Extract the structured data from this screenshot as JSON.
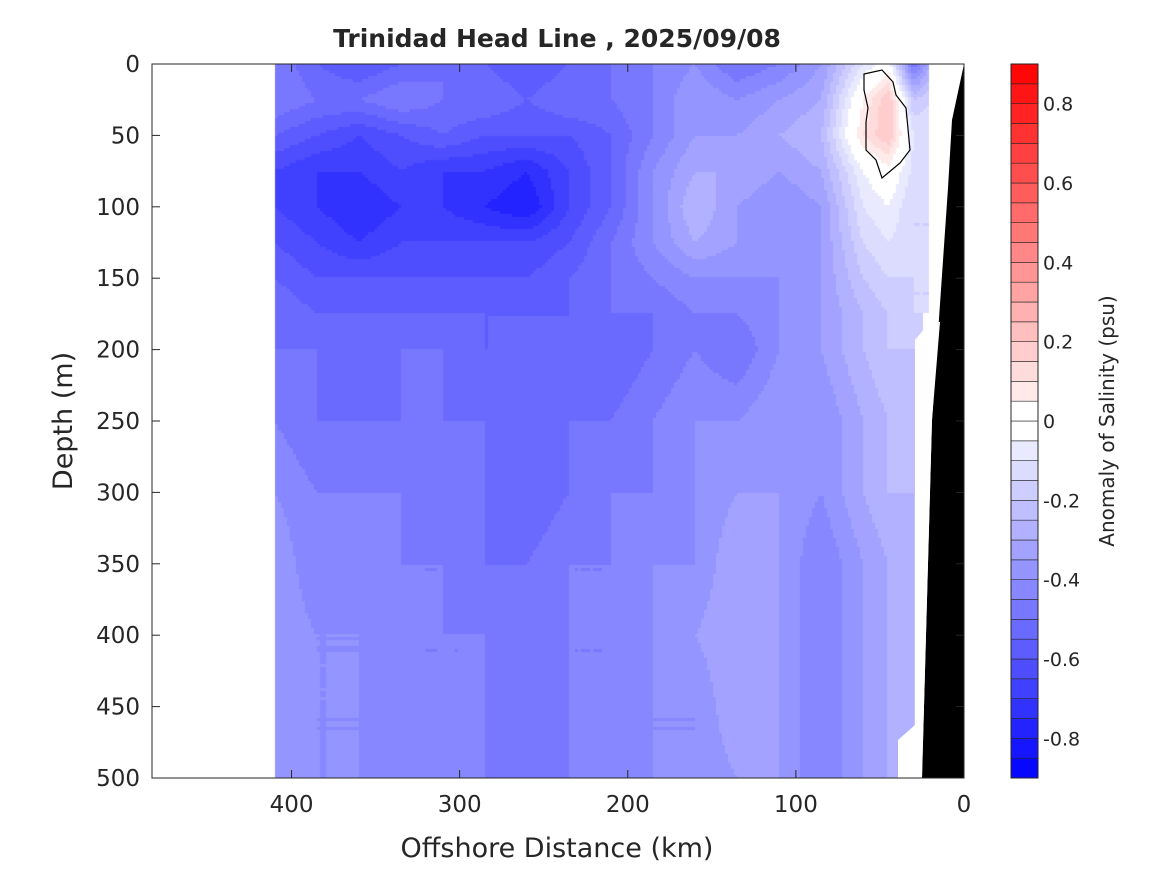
{
  "chart_data": {
    "type": "heatmap",
    "title": "Trinidad Head Line , 2025/09/08",
    "xlabel": "Offshore Distance (km)",
    "ylabel": "Depth (m)",
    "xlim": [
      483,
      0
    ],
    "ylim": [
      500,
      0
    ],
    "xticks": [
      "400",
      "300",
      "200",
      "100",
      "0"
    ],
    "xtick_values": [
      400,
      300,
      200,
      100,
      0
    ],
    "yticks": [
      "0",
      "50",
      "100",
      "150",
      "200",
      "250",
      "300",
      "350",
      "400",
      "450",
      "500"
    ],
    "ytick_values": [
      0,
      50,
      100,
      150,
      200,
      250,
      300,
      350,
      400,
      450,
      500
    ],
    "colorbar": {
      "label": "Anomaly of Salinity (psu)",
      "range": [
        -0.9,
        0.9
      ],
      "step": 0.05,
      "ticks": [
        "0.8",
        "0.6",
        "0.4",
        "0.2",
        "0",
        "-0.2",
        "-0.4",
        "-0.6",
        "-0.8"
      ],
      "tick_values": [
        0.8,
        0.6,
        0.4,
        0.2,
        0,
        -0.2,
        -0.4,
        -0.6,
        -0.8
      ],
      "neg_color": "#0000ff",
      "pos_color": "#ff0000",
      "mid_color": "#ffffff"
    },
    "distance_km": [
      410,
      385,
      360,
      335,
      310,
      285,
      260,
      235,
      210,
      185,
      160,
      135,
      110,
      85,
      60,
      45,
      30,
      20
    ],
    "depth_m": [
      0,
      25,
      50,
      75,
      100,
      125,
      150,
      175,
      200,
      250,
      300,
      350,
      400,
      450,
      500
    ],
    "anomaly": [
      [
        -0.45,
        -0.55,
        -0.6,
        -0.55,
        -0.5,
        -0.55,
        -0.6,
        -0.55,
        -0.5,
        -0.45,
        -0.4,
        -0.5,
        -0.45,
        -0.35,
        -0.1,
        0.0,
        -0.5,
        -0.3
      ],
      [
        -0.45,
        -0.5,
        -0.5,
        -0.45,
        -0.5,
        -0.5,
        -0.55,
        -0.5,
        -0.5,
        -0.45,
        -0.35,
        -0.4,
        -0.35,
        -0.3,
        0.05,
        0.2,
        -0.2,
        -0.15
      ],
      [
        -0.55,
        -0.6,
        -0.65,
        -0.6,
        -0.55,
        -0.6,
        -0.6,
        -0.6,
        -0.55,
        -0.45,
        -0.35,
        -0.35,
        -0.3,
        -0.25,
        0.1,
        0.2,
        -0.1,
        -0.1
      ],
      [
        -0.65,
        -0.7,
        -0.7,
        -0.65,
        -0.7,
        -0.7,
        -0.75,
        -0.65,
        -0.55,
        -0.4,
        -0.3,
        -0.3,
        -0.35,
        -0.3,
        -0.05,
        0.02,
        -0.12,
        -0.12
      ],
      [
        -0.65,
        -0.7,
        -0.75,
        -0.7,
        -0.7,
        -0.75,
        -0.8,
        -0.65,
        -0.55,
        -0.4,
        -0.25,
        -0.35,
        -0.4,
        -0.35,
        -0.1,
        -0.05,
        -0.15,
        -0.15
      ],
      [
        -0.6,
        -0.65,
        -0.7,
        -0.65,
        -0.65,
        -0.65,
        -0.65,
        -0.6,
        -0.5,
        -0.4,
        -0.3,
        -0.35,
        -0.4,
        -0.35,
        -0.15,
        -0.1,
        -0.15,
        -0.15
      ],
      [
        -0.55,
        -0.6,
        -0.6,
        -0.6,
        -0.6,
        -0.6,
        -0.6,
        -0.55,
        -0.5,
        -0.45,
        -0.4,
        -0.4,
        -0.4,
        -0.35,
        -0.2,
        -0.15,
        -0.15,
        -0.15
      ],
      [
        -0.5,
        -0.55,
        -0.55,
        -0.55,
        -0.55,
        -0.55,
        -0.55,
        -0.55,
        -0.5,
        -0.5,
        -0.45,
        -0.45,
        -0.4,
        -0.35,
        -0.25,
        -0.2,
        -0.15,
        -0.15
      ],
      [
        -0.5,
        -0.5,
        -0.55,
        -0.5,
        -0.5,
        -0.55,
        -0.55,
        -0.55,
        -0.55,
        -0.5,
        -0.45,
        -0.5,
        -0.4,
        -0.35,
        -0.25,
        -0.2,
        -0.2,
        null
      ],
      [
        -0.45,
        -0.5,
        -0.5,
        -0.5,
        -0.5,
        -0.5,
        -0.55,
        -0.5,
        -0.5,
        -0.45,
        -0.4,
        -0.4,
        -0.35,
        -0.4,
        -0.3,
        -0.25,
        -0.25,
        null
      ],
      [
        -0.4,
        -0.45,
        -0.45,
        -0.45,
        -0.5,
        -0.5,
        -0.55,
        -0.5,
        -0.45,
        -0.45,
        -0.4,
        -0.35,
        -0.35,
        -0.4,
        -0.3,
        -0.25,
        -0.25,
        null
      ],
      [
        -0.35,
        -0.45,
        -0.4,
        -0.45,
        -0.45,
        -0.5,
        -0.5,
        -0.45,
        -0.45,
        -0.4,
        -0.4,
        -0.3,
        -0.35,
        -0.45,
        -0.35,
        -0.3,
        -0.25,
        null
      ],
      [
        -0.35,
        -0.4,
        -0.4,
        -0.45,
        -0.45,
        -0.45,
        -0.5,
        -0.45,
        -0.45,
        -0.4,
        -0.35,
        -0.3,
        -0.35,
        -0.45,
        -0.35,
        -0.3,
        -0.25,
        null
      ],
      [
        -0.35,
        -0.4,
        -0.4,
        -0.45,
        -0.45,
        -0.45,
        -0.5,
        -0.45,
        -0.45,
        -0.4,
        -0.4,
        -0.3,
        -0.35,
        -0.45,
        -0.35,
        -0.3,
        -0.25,
        null
      ],
      [
        -0.35,
        -0.4,
        -0.4,
        -0.45,
        -0.45,
        -0.45,
        -0.45,
        -0.45,
        -0.4,
        -0.4,
        -0.4,
        -0.35,
        -0.35,
        -0.45,
        -0.35,
        -0.3,
        -0.25,
        null
      ]
    ]
  }
}
